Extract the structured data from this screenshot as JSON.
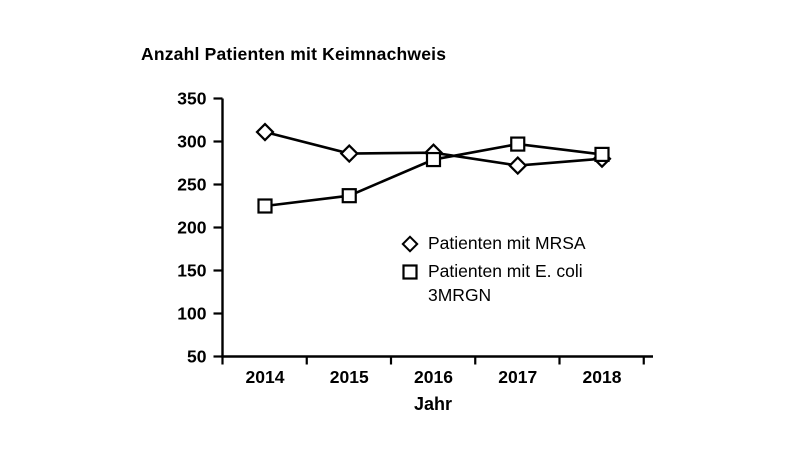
{
  "chart_data": {
    "type": "line",
    "title": "Anzahl Patienten mit Keimnachweis",
    "xlabel": "Jahr",
    "ylabel": "",
    "categories": [
      "2014",
      "2015",
      "2016",
      "2017",
      "2018"
    ],
    "series": [
      {
        "name": "Patienten mit MRSA",
        "marker": "diamond",
        "color": "#000000",
        "values": [
          311,
          286,
          287,
          272,
          280
        ]
      },
      {
        "name": "Patienten mit E. coli 3MRGN",
        "marker": "square",
        "color": "#000000",
        "values": [
          225,
          237,
          279,
          297,
          285
        ]
      }
    ],
    "ylim": [
      50,
      350
    ],
    "yticks": [
      350,
      300,
      250,
      200,
      150,
      100,
      50
    ],
    "grid": false,
    "legend_position": "inside-right",
    "legend": [
      {
        "marker": "diamond",
        "lines": [
          "Patienten mit MRSA"
        ]
      },
      {
        "marker": "square",
        "lines": [
          "Patienten mit E. coli",
          "3MRGN"
        ]
      }
    ],
    "marker_fill": "#ffffff",
    "line_color": "#000000",
    "background": "#ffffff"
  }
}
